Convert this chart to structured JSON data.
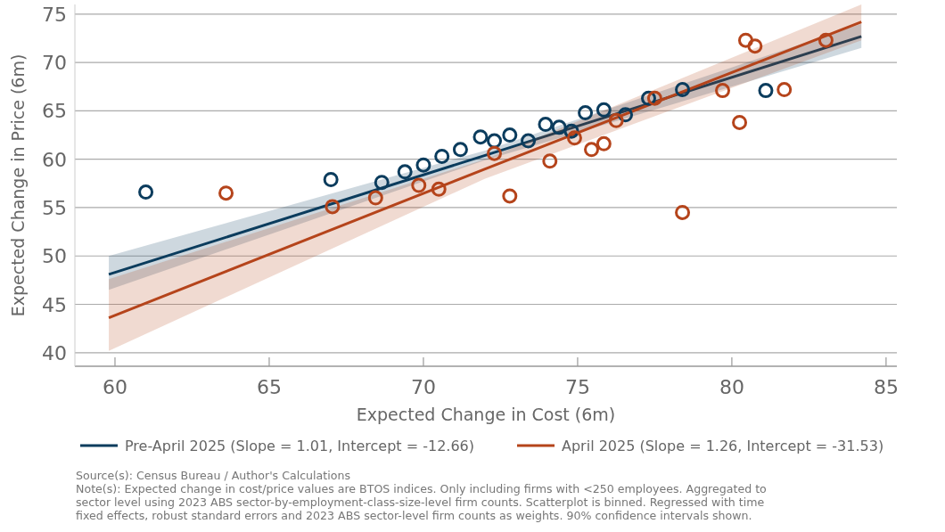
{
  "chart_data": {
    "type": "scatter",
    "xlabel": "Expected Change in Cost (6m)",
    "ylabel": "Expected Change in Price (6m)",
    "xlim": [
      58.7,
      85.35
    ],
    "xticks": [
      60,
      65,
      70,
      75,
      80,
      85
    ],
    "ylim": [
      38.6,
      76
    ],
    "yticks": [
      40,
      45,
      50,
      55,
      60,
      65,
      70,
      75
    ],
    "grid": "y",
    "marker": "circle",
    "legend": "bottom",
    "series": [
      {
        "color": "#0b3c5d",
        "x": [
          61.0,
          67.0,
          68.65,
          69.4,
          70.0,
          70.6,
          71.2,
          71.85,
          72.3,
          72.8,
          73.4,
          73.96,
          74.4,
          74.8,
          75.25,
          75.85,
          76.55,
          77.3,
          78.4,
          81.1
        ],
        "values": [
          56.6,
          57.9,
          57.6,
          58.7,
          59.4,
          60.3,
          61.0,
          62.3,
          61.9,
          62.5,
          61.9,
          63.6,
          63.3,
          62.9,
          64.8,
          65.1,
          64.6,
          66.3,
          67.2,
          67.1
        ]
      },
      {
        "color": "#b5441b",
        "x": [
          63.6,
          67.05,
          68.45,
          69.85,
          70.5,
          72.3,
          72.8,
          74.1,
          74.9,
          75.45,
          75.85,
          76.25,
          77.5,
          78.4,
          79.7,
          80.25,
          80.45,
          80.75,
          81.7,
          83.05
        ],
        "values": [
          56.5,
          55.1,
          56.0,
          57.3,
          56.9,
          60.6,
          56.2,
          59.8,
          62.2,
          61.0,
          61.6,
          64.0,
          66.3,
          54.5,
          67.1,
          63.8,
          72.3,
          71.7,
          67.2,
          72.3
        ]
      },
      {
        "type": "line",
        "marker": "none",
        "name": "Pre-April 2025 (Slope = 1.01, Intercept = -12.66)",
        "color": "#0b3c5d",
        "x": [
          59.8,
          72,
          84.2
        ],
        "values": [
          48.1,
          60.4,
          72.7
        ],
        "lower": [
          46.5,
          59.9,
          71.5
        ],
        "upper": [
          50.0,
          60.9,
          74.0
        ]
      },
      {
        "type": "line",
        "marker": "none",
        "name": "April 2025 (Slope = 1.26, Intercept = -31.53)",
        "color": "#b5441b",
        "x": [
          59.8,
          72,
          84.2
        ],
        "values": [
          43.6,
          59.0,
          74.2
        ],
        "lower": [
          40.2,
          58.0,
          72.3
        ],
        "upper": [
          47.6,
          60.0,
          76.0
        ]
      }
    ],
    "annotations": [
      "Source(s): Census Bureau / Author's Calculations",
      "Note(s): Expected change in cost/price values are BTOS indices. Only including firms with <250 employees. Aggregated to sector level using 2023 ABS sector-by-employment-class-size-level firm counts. Scatterplot is binned. Regressed with time fixed effects, robust standard errors and 2023 ABS sector-level firm counts as weights. 90% confidence intervals shown."
    ]
  }
}
